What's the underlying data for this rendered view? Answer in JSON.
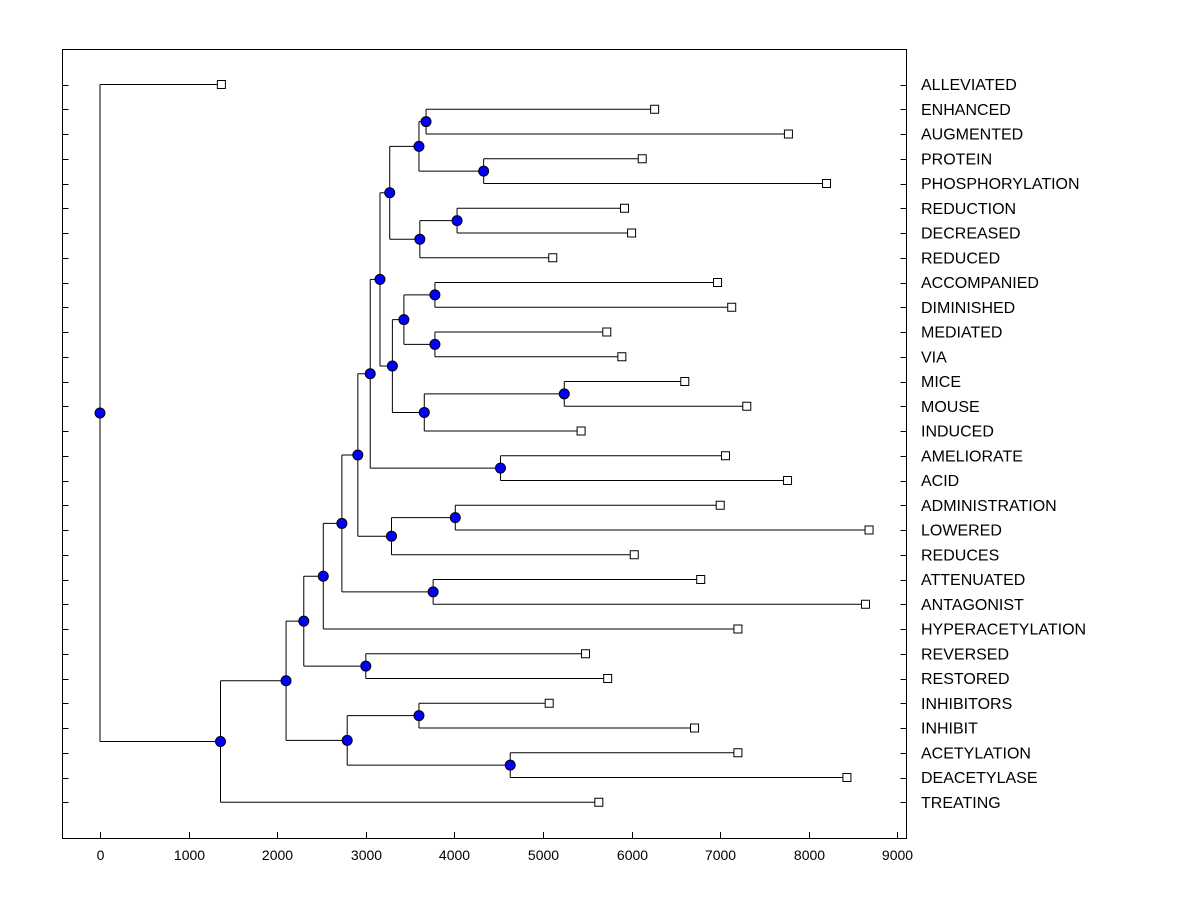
{
  "chart_data": {
    "type": "dendrogram",
    "title": "",
    "xlabel": "",
    "ylabel": "",
    "xlim": [
      -400,
      9100
    ],
    "xticks": [
      0,
      1000,
      2000,
      3000,
      4000,
      5000,
      6000,
      7000,
      8000,
      9000
    ],
    "node_color": "#0000ff",
    "leaf_color": "#ffffff",
    "line_color": "#000000",
    "leaves": [
      {
        "name": "ALLEVIATED",
        "x": 1370
      },
      {
        "name": "ENHANCED",
        "x": 6260
      },
      {
        "name": "AUGMENTED",
        "x": 7770
      },
      {
        "name": "PROTEIN",
        "x": 6120
      },
      {
        "name": "PHOSPHORYLATION",
        "x": 8200
      },
      {
        "name": "REDUCTION",
        "x": 5920
      },
      {
        "name": "DECREASED",
        "x": 6000
      },
      {
        "name": "REDUCED",
        "x": 5110
      },
      {
        "name": "ACCOMPANIED",
        "x": 6970
      },
      {
        "name": "DIMINISHED",
        "x": 7130
      },
      {
        "name": "MEDIATED",
        "x": 5720
      },
      {
        "name": "VIA",
        "x": 5890
      },
      {
        "name": "MICE",
        "x": 6600
      },
      {
        "name": "MOUSE",
        "x": 7300
      },
      {
        "name": "INDUCED",
        "x": 5430
      },
      {
        "name": "AMELIORATE",
        "x": 7060
      },
      {
        "name": "ACID",
        "x": 7760
      },
      {
        "name": "ADMINISTRATION",
        "x": 7000
      },
      {
        "name": "LOWERED",
        "x": 8680
      },
      {
        "name": "REDUCES",
        "x": 6030
      },
      {
        "name": "ATTENUATED",
        "x": 6780
      },
      {
        "name": "ANTAGONIST",
        "x": 8640
      },
      {
        "name": "HYPERACETYLATION",
        "x": 7200
      },
      {
        "name": "REVERSED",
        "x": 5480
      },
      {
        "name": "RESTORED",
        "x": 5730
      },
      {
        "name": "INHIBITORS",
        "x": 5070
      },
      {
        "name": "INHIBIT",
        "x": 6710
      },
      {
        "name": "ACETYLATION",
        "x": 7200
      },
      {
        "name": "DEACETYLASE",
        "x": 8430
      },
      {
        "name": "TREATING",
        "x": 5630
      }
    ],
    "merges": [
      {
        "x": 3680,
        "children": [
          "L1",
          "L2"
        ]
      },
      {
        "x": 4330,
        "children": [
          "L3",
          "L4"
        ]
      },
      {
        "x": 3600,
        "children": [
          "N0",
          "N1"
        ]
      },
      {
        "x": 4030,
        "children": [
          "L5",
          "L6"
        ]
      },
      {
        "x": 3610,
        "children": [
          "N3",
          "L7"
        ]
      },
      {
        "x": 3270,
        "children": [
          "N2",
          "N4"
        ]
      },
      {
        "x": 3780,
        "children": [
          "L8",
          "L9"
        ]
      },
      {
        "x": 3780,
        "children": [
          "L10",
          "L11"
        ]
      },
      {
        "x": 3430,
        "children": [
          "N6",
          "N7"
        ]
      },
      {
        "x": 5240,
        "children": [
          "L12",
          "L13"
        ]
      },
      {
        "x": 3660,
        "children": [
          "N9",
          "L14"
        ]
      },
      {
        "x": 3300,
        "children": [
          "N8",
          "N10"
        ]
      },
      {
        "x": 3160,
        "children": [
          "N5",
          "N11"
        ]
      },
      {
        "x": 4520,
        "children": [
          "L15",
          "L16"
        ]
      },
      {
        "x": 3050,
        "children": [
          "N12",
          "N13"
        ]
      },
      {
        "x": 4010,
        "children": [
          "L17",
          "L18"
        ]
      },
      {
        "x": 3290,
        "children": [
          "N15",
          "L19"
        ]
      },
      {
        "x": 2910,
        "children": [
          "N14",
          "N16"
        ]
      },
      {
        "x": 3760,
        "children": [
          "L20",
          "L21"
        ]
      },
      {
        "x": 2730,
        "children": [
          "N17",
          "N18"
        ]
      },
      {
        "x": 2520,
        "children": [
          "N19",
          "L22"
        ]
      },
      {
        "x": 3000,
        "children": [
          "L23",
          "L24"
        ]
      },
      {
        "x": 2300,
        "children": [
          "N20",
          "N21"
        ]
      },
      {
        "x": 3600,
        "children": [
          "L25",
          "L26"
        ]
      },
      {
        "x": 4630,
        "children": [
          "L27",
          "L28"
        ]
      },
      {
        "x": 2790,
        "children": [
          "N23",
          "N24"
        ]
      },
      {
        "x": 2100,
        "children": [
          "N22",
          "N25"
        ]
      },
      {
        "x": 1360,
        "children": [
          "N26",
          "L29"
        ]
      },
      {
        "x": 0,
        "children": [
          "L0",
          "N27"
        ]
      }
    ]
  }
}
